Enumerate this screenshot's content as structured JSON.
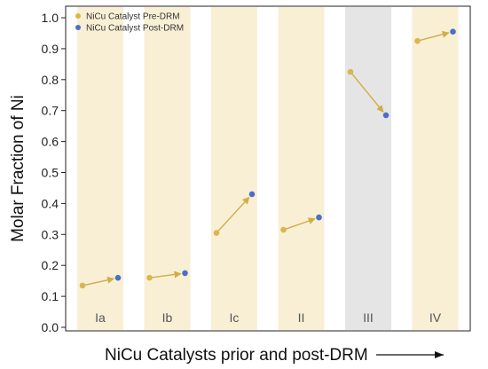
{
  "chart_data": {
    "type": "scatter",
    "title": "",
    "xlabel": "NiCu Catalysts prior and post-DRM",
    "ylabel": "Molar Fraction of Ni",
    "ylim": [
      0.0,
      1.0
    ],
    "yticks": [
      "0.0",
      "0.1",
      "0.2",
      "0.3",
      "0.4",
      "0.5",
      "0.6",
      "0.7",
      "0.8",
      "0.9",
      "1.0"
    ],
    "ytick_values": [
      0,
      0.1,
      0.2,
      0.3,
      0.4,
      0.5,
      0.6,
      0.7,
      0.8,
      0.9,
      1.0
    ],
    "grid": false,
    "legend_position": "top-left",
    "categories": [
      "Ia",
      "Ib",
      "Ic",
      "II",
      "III",
      "IV"
    ],
    "series": [
      {
        "name": "NiCu Catalyst Pre-DRM",
        "color": "#d9b650",
        "values": [
          0.135,
          0.16,
          0.305,
          0.315,
          0.825,
          0.925
        ]
      },
      {
        "name": "NiCu Catalyst Post-DRM",
        "color": "#4a6fc7",
        "values": [
          0.16,
          0.175,
          0.43,
          0.355,
          0.685,
          0.955
        ]
      }
    ],
    "band_colors": [
      "#f8efd5",
      "#f8efd5",
      "#f8efd5",
      "#f8efd5",
      "#e5e5e5",
      "#f8efd5"
    ],
    "arrow_color": "#d2ad45"
  }
}
